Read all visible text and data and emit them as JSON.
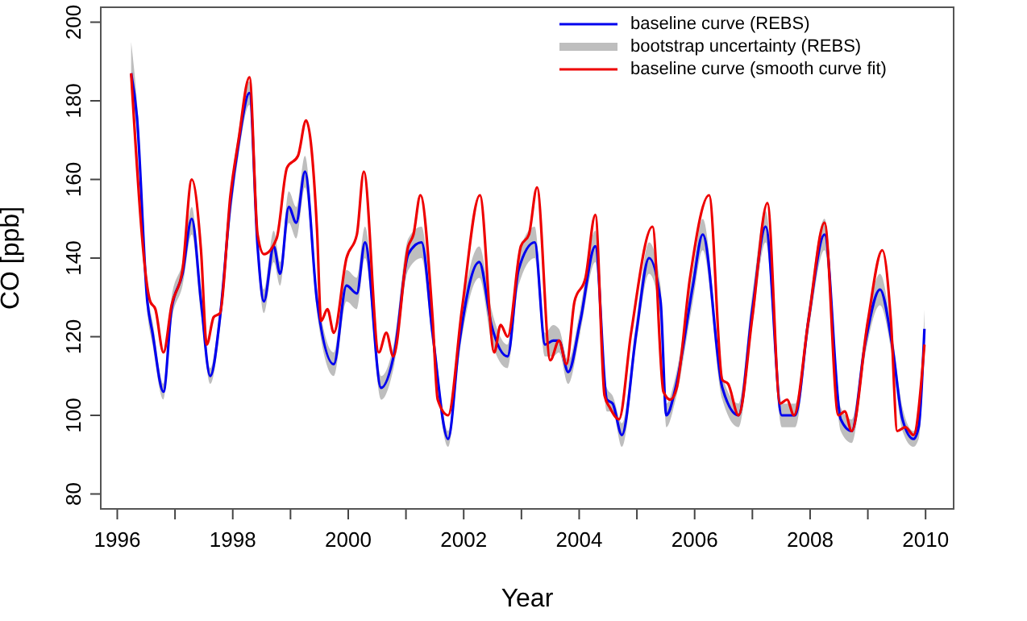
{
  "chart_data": {
    "type": "line",
    "xlabel": "Year",
    "ylabel": "CO [ppb]",
    "xlim": [
      1995.7,
      2010.5
    ],
    "ylim": [
      76,
      204
    ],
    "xticks": [
      1996,
      {
        "value": 1997,
        "label": null
      },
      1998,
      {
        "value": 1999,
        "label": null
      },
      2000,
      {
        "value": 2001,
        "label": null
      },
      2002,
      {
        "value": 2003,
        "label": null
      },
      2004,
      {
        "value": 2005,
        "label": null
      },
      2006,
      {
        "value": 2007,
        "label": null
      },
      2008,
      {
        "value": 2009,
        "label": null
      },
      2010
    ],
    "yticks": [
      80,
      100,
      120,
      140,
      160,
      180,
      200
    ],
    "legend": "top right",
    "marker": "none",
    "line_style": "solid",
    "annotations": [
      "bootstrap uncertainty (REBS)"
    ],
    "series": [
      {
        "name": "baseline curve (REBS)",
        "color": "#0000ee",
        "x": [
          1996.24,
          1996.34,
          1996.52,
          1996.61,
          1996.8,
          1996.94,
          1997.13,
          1997.29,
          1997.45,
          1997.61,
          1997.78,
          1997.96,
          1998.1,
          1998.29,
          1998.43,
          1998.54,
          1998.71,
          1998.82,
          1998.97,
          1999.1,
          1999.25,
          1999.46,
          1999.75,
          1999.97,
          2000.15,
          2000.29,
          2000.57,
          2000.8,
          2001.04,
          2001.27,
          2001.46,
          2001.73,
          2001.92,
          2002.27,
          2002.48,
          2002.76,
          2002.95,
          2003.23,
          2003.41,
          2003.55,
          2003.65,
          2003.81,
          2004.02,
          2004.28,
          2004.48,
          2004.58,
          2004.74,
          2004.99,
          2005.21,
          2005.41,
          2005.51,
          2005.67,
          2005.97,
          2006.14,
          2006.48,
          2006.76,
          2007.0,
          2007.23,
          2007.51,
          2007.74,
          2007.97,
          2008.25,
          2008.53,
          2008.72,
          2008.95,
          2009.21,
          2009.42,
          2009.6,
          2009.79,
          2009.88,
          2009.98
        ],
        "values": [
          187,
          176,
          129,
          121,
          106,
          127,
          136,
          150,
          129,
          110,
          125,
          154,
          169,
          182,
          143,
          129,
          143,
          136,
          153,
          149,
          162,
          129,
          113,
          133,
          131,
          144,
          107,
          116,
          141,
          144,
          121,
          94,
          118,
          139,
          123,
          115,
          137,
          144,
          118,
          119,
          119,
          111,
          124,
          143,
          104,
          103,
          95,
          121,
          140,
          129,
          100,
          107,
          133,
          146,
          107,
          100,
          127,
          148,
          100,
          100,
          124,
          146,
          99,
          96,
          118,
          132,
          118,
          99,
          94,
          97,
          122
        ],
        "lower": [
          183,
          172,
          126,
          118,
          104,
          124,
          133,
          146,
          126,
          108,
          122,
          150,
          166,
          179,
          140,
          126,
          139,
          133,
          149,
          145,
          158,
          126,
          110,
          129,
          127,
          140,
          104,
          113,
          137,
          140,
          118,
          92,
          115,
          135,
          119,
          112,
          133,
          140,
          115,
          115,
          116,
          108,
          121,
          139,
          101,
          101,
          92,
          118,
          136,
          125,
          97,
          104,
          129,
          142,
          104,
          97,
          123,
          144,
          97,
          97,
          121,
          142,
          96,
          93,
          115,
          128,
          115,
          96,
          92,
          94,
          118
        ],
        "upper": [
          195,
          180,
          132,
          124,
          108,
          130,
          139,
          153,
          132,
          112,
          128,
          157,
          172,
          185,
          146,
          132,
          147,
          139,
          157,
          153,
          166,
          132,
          116,
          137,
          135,
          148,
          110,
          119,
          145,
          148,
          124,
          96,
          121,
          143,
          127,
          118,
          141,
          148,
          121,
          123,
          122,
          114,
          127,
          147,
          107,
          105,
          98,
          124,
          144,
          133,
          103,
          110,
          137,
          150,
          110,
          103,
          131,
          152,
          103,
          103,
          127,
          150,
          102,
          99,
          121,
          136,
          121,
          102,
          96,
          100,
          127
        ]
      },
      {
        "name": "baseline curve (smooth curve fit)",
        "color": "#ee0000",
        "x": [
          1996.24,
          1996.57,
          1996.66,
          1996.8,
          1996.94,
          1997.13,
          1997.29,
          1997.45,
          1997.55,
          1997.67,
          1997.78,
          1997.96,
          1998.1,
          1998.29,
          1998.43,
          1998.54,
          1998.76,
          1998.94,
          1999.13,
          1999.27,
          1999.46,
          1999.53,
          1999.64,
          1999.75,
          1999.97,
          2000.15,
          2000.27,
          2000.53,
          2000.66,
          2000.78,
          2001.04,
          2001.13,
          2001.25,
          2001.46,
          2001.55,
          2001.73,
          2001.97,
          2002.28,
          2002.53,
          2002.64,
          2002.76,
          2002.99,
          2003.13,
          2003.27,
          2003.5,
          2003.65,
          2003.78,
          2003.92,
          2004.11,
          2004.28,
          2004.44,
          2004.53,
          2004.69,
          2004.9,
          2005.27,
          2005.46,
          2005.58,
          2005.69,
          2005.92,
          2006.25,
          2006.48,
          2006.58,
          2006.76,
          2007.0,
          2007.26,
          2007.48,
          2007.6,
          2007.72,
          2007.97,
          2008.25,
          2008.49,
          2008.6,
          2008.72,
          2009.0,
          2009.25,
          2009.4,
          2009.51,
          2009.65,
          2009.79,
          2009.98
        ],
        "values": [
          187,
          129,
          127,
          116,
          128,
          137,
          160,
          142,
          118,
          125,
          126,
          156,
          170,
          186,
          146,
          141,
          145,
          163,
          166,
          175,
          147,
          124,
          127,
          121,
          140,
          146,
          162,
          116,
          121,
          115,
          143,
          146,
          156,
          125,
          104,
          100,
          127,
          156,
          116,
          123,
          120,
          143,
          146,
          158,
          114,
          119,
          113,
          129,
          135,
          151,
          105,
          102,
          99,
          121,
          148,
          106,
          104,
          107,
          135,
          156,
          109,
          108,
          100,
          125,
          154,
          103,
          104,
          100,
          124,
          149,
          100,
          101,
          96,
          124,
          142,
          124,
          96,
          97,
          95,
          118
        ]
      }
    ]
  }
}
